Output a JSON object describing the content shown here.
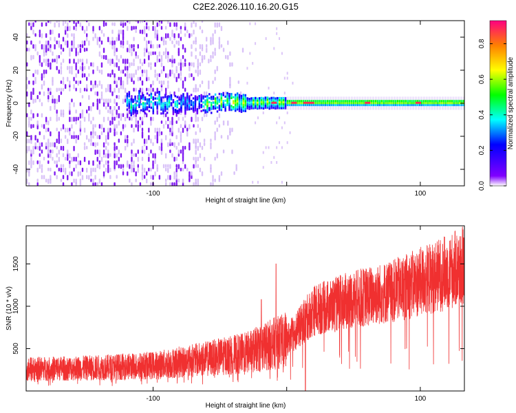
{
  "figure_title": "C2E2.2026.110.16.20.G15",
  "colors": {
    "snr_line": "#f03030",
    "axis": "#000000",
    "background": "#ffffff"
  },
  "chart_data": [
    {
      "type": "heatmap",
      "title": "C2E2.2026.110.16.20.G15",
      "xlabel": "Height of straight line (km)",
      "ylabel": "Frequency (Hz)",
      "xlim": [
        -195,
        133
      ],
      "ylim": [
        -50,
        50
      ],
      "xticks": [
        -100,
        0,
        100
      ],
      "xtick_labels": [
        "-100",
        "",
        "100"
      ],
      "yticks": [
        -40,
        -20,
        0,
        20,
        40
      ],
      "ytick_labels": [
        "-40",
        "-20",
        "0",
        "20",
        "40"
      ],
      "grid": false,
      "colorbar": {
        "label": "Normalized spectral amplitude",
        "range": [
          0.0,
          0.93
        ],
        "ticks": [
          0.0,
          0.2,
          0.4,
          0.6,
          0.8
        ],
        "tick_labels": [
          "0.0",
          "0.2",
          "0.4",
          "0.6",
          "0.8"
        ],
        "colormap": [
          "#ffffff",
          "#8000ff",
          "#0000ff",
          "#00ffff",
          "#00ff00",
          "#ffff00",
          "#ff8000",
          "#ff0080"
        ]
      },
      "features": [
        {
          "name": "diffuse noise",
          "x_range": [
            -195,
            -30
          ],
          "y_range": [
            -50,
            50
          ],
          "amplitude": 0.05
        },
        {
          "name": "sparse noise",
          "x_range": [
            -30,
            5
          ],
          "y_range": [
            -50,
            50
          ],
          "amplitude": 0.02
        },
        {
          "name": "reflection band",
          "x_range": [
            -120,
            133
          ],
          "center_hz": 0,
          "amplitude_peak": 0.9
        }
      ]
    },
    {
      "type": "line",
      "title": "",
      "xlabel": "Height of straight line (km)",
      "ylabel": "SNR (10 * v/v)",
      "xlim": [
        -195,
        133
      ],
      "ylim": [
        0,
        1950
      ],
      "xticks": [
        -100,
        0,
        100
      ],
      "xtick_labels": [
        "-100",
        "",
        "100"
      ],
      "yticks": [
        500,
        1000,
        1500
      ],
      "ytick_labels": [
        "500",
        "1000",
        "1500"
      ],
      "grid": false,
      "series": [
        {
          "name": "SNR",
          "color": "#f03030",
          "trend": [
            {
              "x": -195,
              "y": 260
            },
            {
              "x": -150,
              "y": 270
            },
            {
              "x": -100,
              "y": 300
            },
            {
              "x": -60,
              "y": 380
            },
            {
              "x": -30,
              "y": 450
            },
            {
              "x": -10,
              "y": 560
            },
            {
              "x": 0,
              "y": 600
            },
            {
              "x": 10,
              "y": 760
            },
            {
              "x": 20,
              "y": 950
            },
            {
              "x": 50,
              "y": 1080
            },
            {
              "x": 80,
              "y": 1180
            },
            {
              "x": 110,
              "y": 1340
            },
            {
              "x": 133,
              "y": 1480
            }
          ],
          "spikes": [
            {
              "x": -8,
              "y": 1500
            },
            {
              "x": -19,
              "y": 1080
            },
            {
              "x": 14,
              "y": 0
            }
          ]
        }
      ]
    }
  ]
}
